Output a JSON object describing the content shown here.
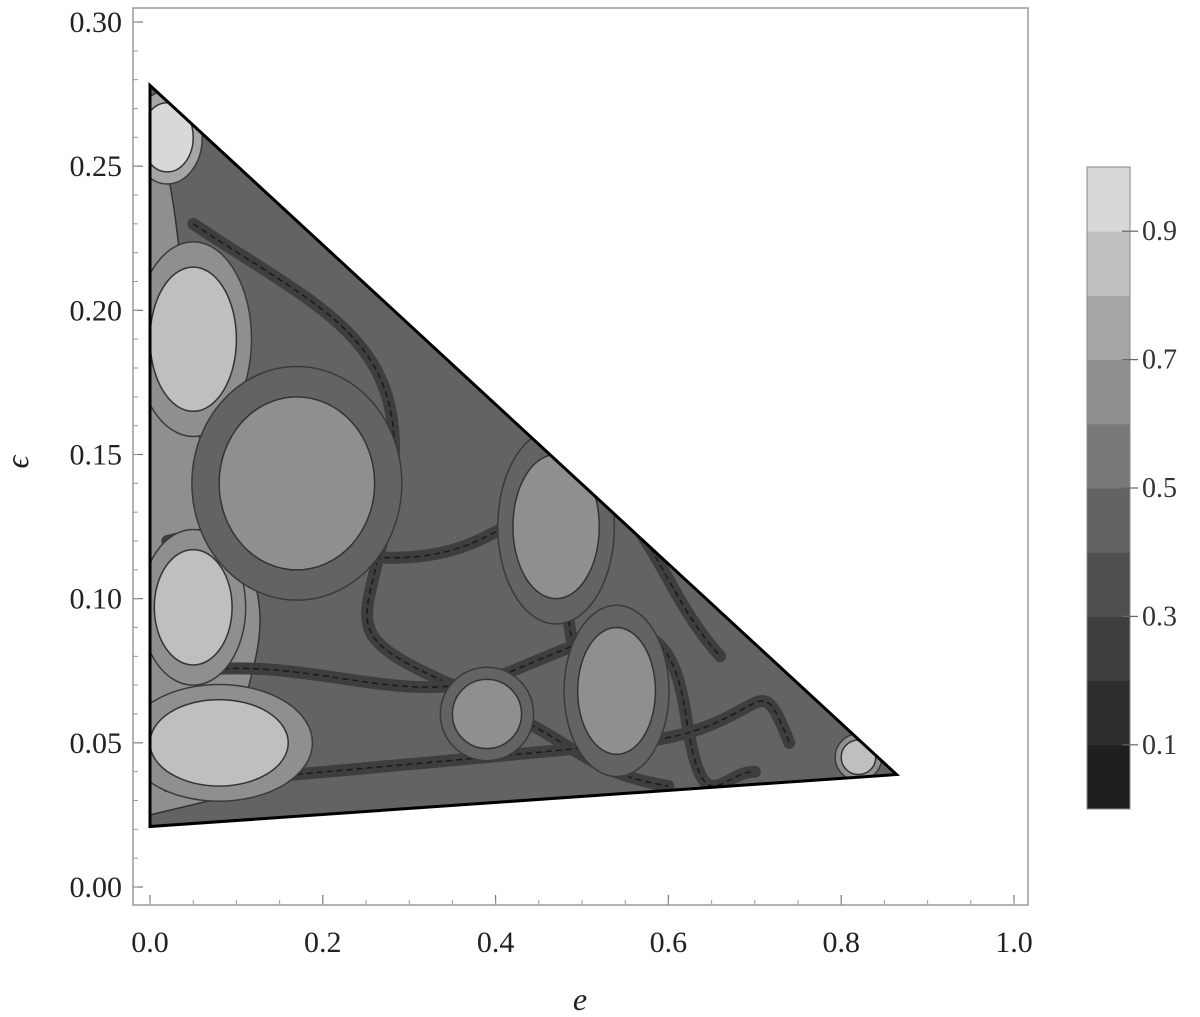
{
  "chart_data": {
    "type": "heatmap",
    "subtype": "filled-contour",
    "title": "",
    "xlabel": "e",
    "ylabel": "ϵ",
    "xlim": [
      -0.01,
      1.02
    ],
    "ylim": [
      -0.007,
      0.305
    ],
    "x_ticks": [
      "0.0",
      "0.2",
      "0.4",
      "0.6",
      "0.8",
      "1.0"
    ],
    "x_tick_values": [
      0.0,
      0.2,
      0.4,
      0.6,
      0.8,
      1.0
    ],
    "y_ticks": [
      "0.00",
      "0.05",
      "0.10",
      "0.15",
      "0.20",
      "0.25",
      "0.30"
    ],
    "y_tick_values": [
      0.0,
      0.05,
      0.1,
      0.15,
      0.2,
      0.25,
      0.3
    ],
    "grid": false,
    "domain_triangle": [
      [
        0.0,
        0.278
      ],
      [
        0.0,
        0.021
      ],
      [
        0.864,
        0.039
      ]
    ],
    "colorbar": {
      "range": [
        0.0,
        1.0
      ],
      "levels": 10,
      "tick_labels": [
        "0.1",
        "0.3",
        "0.5",
        "0.7",
        "0.9"
      ],
      "tick_values": [
        0.1,
        0.3,
        0.5,
        0.7,
        0.9
      ],
      "colors": [
        "#1f1f1f",
        "#2e2e2e",
        "#3e3e3e",
        "#4f4f4f",
        "#636363",
        "#787878",
        "#8f8f8f",
        "#a6a6a6",
        "#bfbfbf",
        "#d8d8d8",
        "#ebebeb"
      ]
    },
    "regions": [
      {
        "center": [
          0.05,
          0.19
        ],
        "value": 0.75,
        "size": [
          0.05,
          0.025
        ]
      },
      {
        "center": [
          0.05,
          0.097
        ],
        "value": 0.75,
        "size": [
          0.045,
          0.02
        ]
      },
      {
        "center": [
          0.08,
          0.05
        ],
        "value": 0.75,
        "size": [
          0.08,
          0.015
        ]
      },
      {
        "center": [
          0.02,
          0.26
        ],
        "value": 0.85,
        "size": [
          0.03,
          0.012
        ]
      },
      {
        "center": [
          0.17,
          0.14
        ],
        "value": 0.55,
        "size": [
          0.09,
          0.03
        ]
      },
      {
        "center": [
          0.39,
          0.06
        ],
        "value": 0.55,
        "size": [
          0.04,
          0.012
        ]
      },
      {
        "center": [
          0.54,
          0.068
        ],
        "value": 0.55,
        "size": [
          0.045,
          0.022
        ]
      },
      {
        "center": [
          0.47,
          0.125
        ],
        "value": 0.55,
        "size": [
          0.05,
          0.025
        ]
      },
      {
        "center": [
          0.82,
          0.045
        ],
        "value": 0.75,
        "size": [
          0.02,
          0.006
        ]
      }
    ]
  }
}
